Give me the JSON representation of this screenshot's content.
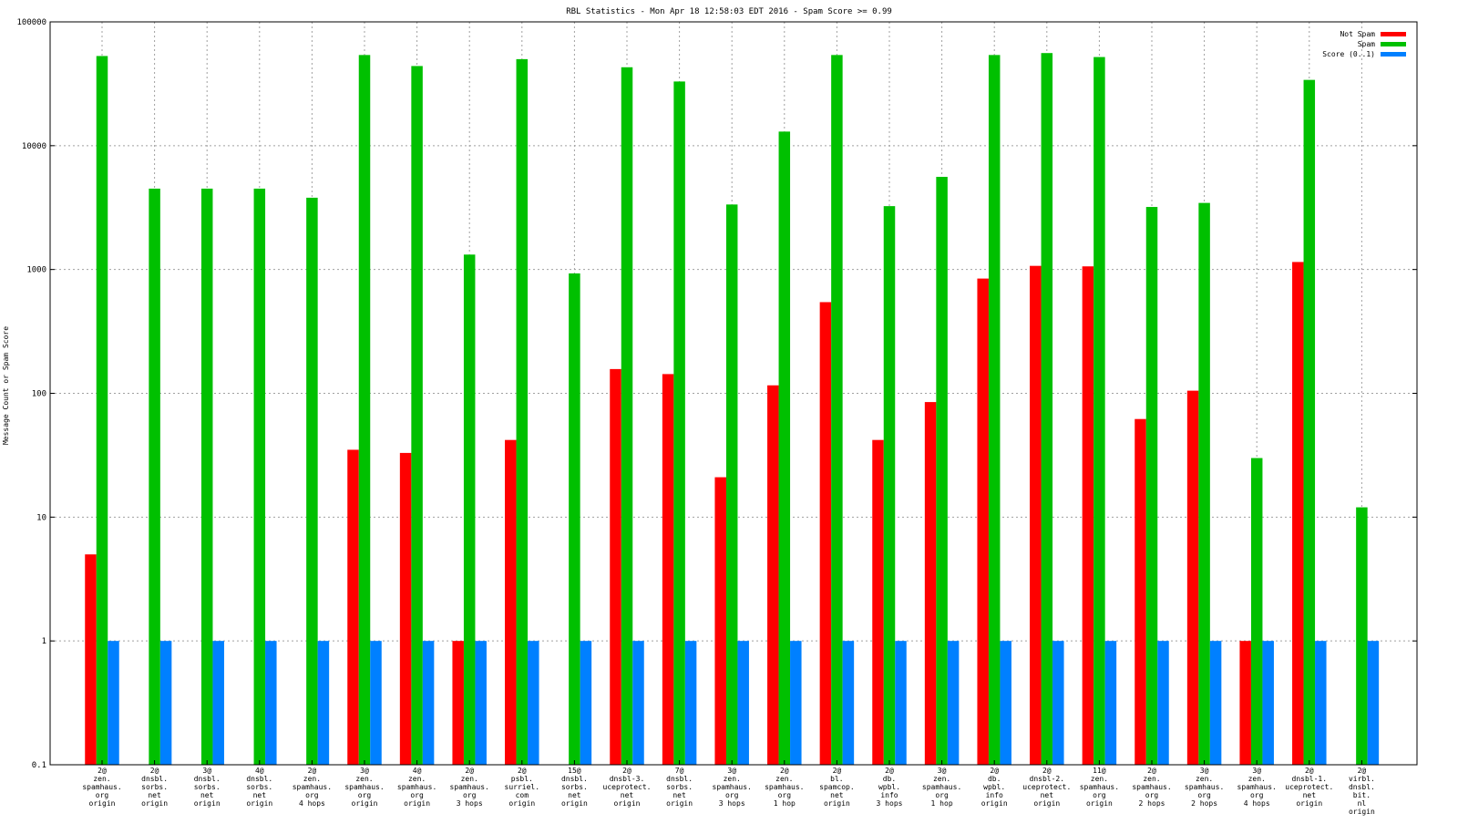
{
  "chart_data": {
    "type": "bar",
    "title": "RBL Statistics - Mon Apr 18 12:58:03 EDT 2016 - Spam Score >= 0.99",
    "xlabel": "",
    "ylabel": "Message Count or Spam Score",
    "yscale": "log",
    "ylim": [
      0.1,
      100000
    ],
    "yticks": [
      {
        "value": 0.1,
        "label": "0.1"
      },
      {
        "value": 1,
        "label": "1"
      },
      {
        "value": 10,
        "label": "10"
      },
      {
        "value": 100,
        "label": "100"
      },
      {
        "value": 1000,
        "label": "1000"
      },
      {
        "value": 10000,
        "label": "10000"
      },
      {
        "value": 100000,
        "label": "100000"
      }
    ],
    "grid": true,
    "legend_position": "top-right",
    "categories": [
      [
        "2@",
        "zen.",
        "spamhaus.",
        "org",
        "origin"
      ],
      [
        "2@",
        "dnsbl.",
        "sorbs.",
        "net",
        "origin"
      ],
      [
        "3@",
        "dnsbl.",
        "sorbs.",
        "net",
        "origin"
      ],
      [
        "4@",
        "dnsbl.",
        "sorbs.",
        "net",
        "origin"
      ],
      [
        "2@",
        "zen.",
        "spamhaus.",
        "org",
        "4 hops"
      ],
      [
        "3@",
        "zen.",
        "spamhaus.",
        "org",
        "origin"
      ],
      [
        "4@",
        "zen.",
        "spamhaus.",
        "org",
        "origin"
      ],
      [
        "2@",
        "zen.",
        "spamhaus.",
        "org",
        "3 hops"
      ],
      [
        "2@",
        "psbl.",
        "surriel.",
        "com",
        "origin"
      ],
      [
        "15@",
        "dnsbl.",
        "sorbs.",
        "net",
        "origin"
      ],
      [
        "2@",
        "dnsbl-3.",
        "uceprotect.",
        "net",
        "origin"
      ],
      [
        "7@",
        "dnsbl.",
        "sorbs.",
        "net",
        "origin"
      ],
      [
        "3@",
        "zen.",
        "spamhaus.",
        "org",
        "3 hops"
      ],
      [
        "2@",
        "zen.",
        "spamhaus.",
        "org",
        "1 hop"
      ],
      [
        "2@",
        "bl.",
        "spamcop.",
        "net",
        "origin"
      ],
      [
        "2@",
        "db.",
        "wpbl.",
        "info",
        "3 hops"
      ],
      [
        "3@",
        "zen.",
        "spamhaus.",
        "org",
        "1 hop"
      ],
      [
        "2@",
        "db.",
        "wpbl.",
        "info",
        "origin"
      ],
      [
        "2@",
        "dnsbl-2.",
        "uceprotect.",
        "net",
        "origin"
      ],
      [
        "11@",
        "zen.",
        "spamhaus.",
        "org",
        "origin"
      ],
      [
        "2@",
        "zen.",
        "spamhaus.",
        "org",
        "2 hops"
      ],
      [
        "3@",
        "zen.",
        "spamhaus.",
        "org",
        "2 hops"
      ],
      [
        "3@",
        "zen.",
        "spamhaus.",
        "org",
        "4 hops"
      ],
      [
        "2@",
        "dnsbl-1.",
        "uceprotect.",
        "net",
        "origin"
      ],
      [
        "2@",
        "virbl.",
        "dnsbl.",
        "bit.",
        "nl",
        "origin"
      ]
    ],
    "series": [
      {
        "name": "Not Spam",
        "color": "#ff0000",
        "values": [
          5,
          null,
          null,
          null,
          null,
          35,
          33,
          1,
          42,
          null,
          157,
          143,
          21,
          116,
          545,
          42,
          85,
          845,
          1070,
          1060,
          62,
          105,
          1,
          1150,
          null
        ]
      },
      {
        "name": "Spam",
        "color": "#00c000",
        "values": [
          53000,
          4500,
          4500,
          4500,
          3800,
          54000,
          44000,
          1320,
          50000,
          930,
          43000,
          33000,
          3350,
          13000,
          54000,
          3250,
          5600,
          54000,
          56000,
          52000,
          3200,
          3450,
          30,
          34000,
          12
        ]
      },
      {
        "name": "Score (0..1)",
        "color": "#0080ff",
        "values": [
          1,
          1,
          1,
          1,
          1,
          1,
          1,
          1,
          1,
          1,
          1,
          1,
          1,
          1,
          1,
          1,
          1,
          1,
          1,
          1,
          1,
          1,
          1,
          1,
          1
        ]
      }
    ]
  }
}
